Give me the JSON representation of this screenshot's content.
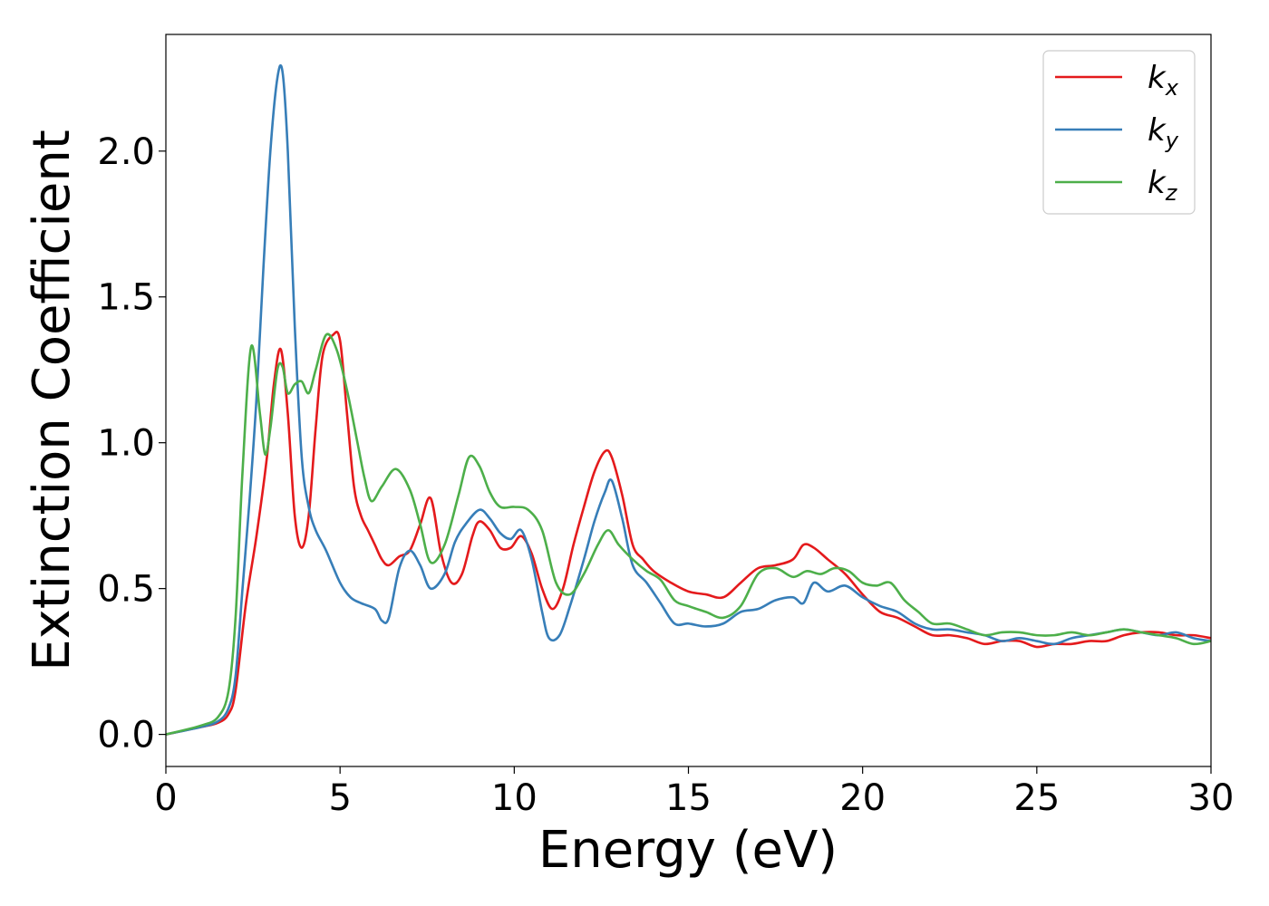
{
  "chart_data": {
    "type": "line",
    "xlabel": "Energy (eV)",
    "ylabel": "Extinction Coefficient",
    "xlim": [
      0,
      30
    ],
    "ylim": [
      -0.11,
      2.4
    ],
    "xticks": [
      0,
      5,
      10,
      15,
      20,
      25,
      30
    ],
    "xtick_labels": [
      "0",
      "5",
      "10",
      "15",
      "20",
      "25",
      "30"
    ],
    "yticks": [
      0.0,
      0.5,
      1.0,
      1.5,
      2.0
    ],
    "ytick_labels": [
      "0.0",
      "0.5",
      "1.0",
      "1.5",
      "2.0"
    ],
    "grid": false,
    "legend_position": "top-right",
    "series": [
      {
        "name": "k_x",
        "label_base": "k",
        "label_sub": "x",
        "color": "#e41a1c",
        "x": [
          0,
          1.0,
          1.5,
          1.8,
          2.0,
          2.3,
          2.6,
          2.9,
          3.1,
          3.3,
          3.5,
          3.7,
          3.9,
          4.1,
          4.3,
          4.5,
          4.8,
          5.0,
          5.2,
          5.4,
          5.6,
          5.8,
          6.0,
          6.2,
          6.4,
          6.7,
          7.0,
          7.3,
          7.6,
          7.9,
          8.2,
          8.5,
          8.8,
          9.0,
          9.3,
          9.6,
          9.9,
          10.2,
          10.5,
          10.8,
          11.1,
          11.4,
          11.7,
          12.0,
          12.3,
          12.6,
          12.8,
          13.1,
          13.4,
          13.7,
          14.0,
          14.5,
          15.0,
          15.5,
          16.0,
          16.5,
          17.0,
          17.5,
          18.0,
          18.3,
          18.6,
          19.0,
          19.5,
          20.0,
          20.5,
          21.0,
          21.5,
          22.0,
          22.5,
          23.0,
          23.5,
          24.0,
          24.5,
          25.0,
          25.5,
          26.0,
          26.5,
          27.0,
          27.5,
          28.0,
          28.5,
          29.0,
          29.5,
          30.0
        ],
        "y": [
          0.0,
          0.025,
          0.04,
          0.07,
          0.15,
          0.45,
          0.68,
          0.95,
          1.2,
          1.32,
          1.1,
          0.75,
          0.64,
          0.75,
          1.05,
          1.3,
          1.37,
          1.35,
          1.1,
          0.85,
          0.75,
          0.7,
          0.65,
          0.6,
          0.58,
          0.61,
          0.63,
          0.72,
          0.81,
          0.62,
          0.52,
          0.55,
          0.68,
          0.73,
          0.7,
          0.64,
          0.64,
          0.68,
          0.62,
          0.5,
          0.43,
          0.5,
          0.65,
          0.78,
          0.9,
          0.97,
          0.95,
          0.82,
          0.65,
          0.6,
          0.56,
          0.52,
          0.49,
          0.48,
          0.47,
          0.52,
          0.57,
          0.58,
          0.6,
          0.65,
          0.64,
          0.6,
          0.55,
          0.48,
          0.42,
          0.4,
          0.37,
          0.34,
          0.34,
          0.33,
          0.31,
          0.32,
          0.32,
          0.3,
          0.31,
          0.31,
          0.32,
          0.32,
          0.34,
          0.35,
          0.35,
          0.34,
          0.34,
          0.33
        ]
      },
      {
        "name": "k_y",
        "label_base": "k",
        "label_sub": "y",
        "color": "#377eb8",
        "x": [
          0,
          1.0,
          1.5,
          1.8,
          2.0,
          2.2,
          2.4,
          2.6,
          2.8,
          3.0,
          3.2,
          3.35,
          3.5,
          3.7,
          3.9,
          4.1,
          4.3,
          4.6,
          5.0,
          5.3,
          5.6,
          6.0,
          6.2,
          6.4,
          6.7,
          7.0,
          7.3,
          7.6,
          8.0,
          8.3,
          8.6,
          9.0,
          9.3,
          9.6,
          9.9,
          10.2,
          10.5,
          10.8,
          11.0,
          11.3,
          11.6,
          12.0,
          12.3,
          12.6,
          12.8,
          13.1,
          13.4,
          13.8,
          14.2,
          14.6,
          15.0,
          15.5,
          16.0,
          16.5,
          17.0,
          17.5,
          18.0,
          18.3,
          18.6,
          19.0,
          19.5,
          20.0,
          20.5,
          21.0,
          21.5,
          22.0,
          22.5,
          23.0,
          23.5,
          24.0,
          24.5,
          25.0,
          25.5,
          26.0,
          26.5,
          27.0,
          27.5,
          28.0,
          28.5,
          29.0,
          29.5,
          30.0
        ],
        "y": [
          0.0,
          0.025,
          0.045,
          0.09,
          0.2,
          0.5,
          0.8,
          1.15,
          1.6,
          2.0,
          2.25,
          2.27,
          2.0,
          1.4,
          0.95,
          0.78,
          0.7,
          0.63,
          0.52,
          0.47,
          0.45,
          0.43,
          0.39,
          0.4,
          0.57,
          0.63,
          0.58,
          0.5,
          0.55,
          0.66,
          0.72,
          0.77,
          0.74,
          0.69,
          0.67,
          0.7,
          0.6,
          0.42,
          0.33,
          0.34,
          0.44,
          0.6,
          0.73,
          0.83,
          0.87,
          0.74,
          0.58,
          0.52,
          0.45,
          0.38,
          0.38,
          0.37,
          0.38,
          0.42,
          0.43,
          0.46,
          0.47,
          0.45,
          0.52,
          0.49,
          0.51,
          0.47,
          0.44,
          0.42,
          0.38,
          0.36,
          0.36,
          0.35,
          0.34,
          0.32,
          0.33,
          0.32,
          0.31,
          0.33,
          0.34,
          0.35,
          0.36,
          0.35,
          0.34,
          0.35,
          0.33,
          0.32
        ]
      },
      {
        "name": "k_z",
        "label_base": "k",
        "label_sub": "z",
        "color": "#4daf4a",
        "x": [
          0,
          1.0,
          1.5,
          1.8,
          2.0,
          2.2,
          2.45,
          2.7,
          2.85,
          3.0,
          3.2,
          3.35,
          3.5,
          3.7,
          3.9,
          4.1,
          4.3,
          4.6,
          4.9,
          5.2,
          5.5,
          5.7,
          5.9,
          6.2,
          6.6,
          7.0,
          7.3,
          7.6,
          8.0,
          8.4,
          8.7,
          9.0,
          9.3,
          9.6,
          10.0,
          10.4,
          10.8,
          11.2,
          11.6,
          12.0,
          12.4,
          12.7,
          13.0,
          13.4,
          13.8,
          14.2,
          14.6,
          15.0,
          15.5,
          16.0,
          16.5,
          17.0,
          17.5,
          18.0,
          18.4,
          18.8,
          19.2,
          19.6,
          20.0,
          20.4,
          20.8,
          21.2,
          21.6,
          22.0,
          22.5,
          23.0,
          23.5,
          24.0,
          24.5,
          25.0,
          25.5,
          26.0,
          26.5,
          27.0,
          27.5,
          28.0,
          28.5,
          29.0,
          29.5,
          30.0
        ],
        "y": [
          0.0,
          0.03,
          0.06,
          0.15,
          0.4,
          0.9,
          1.33,
          1.1,
          0.96,
          1.05,
          1.25,
          1.26,
          1.17,
          1.2,
          1.21,
          1.17,
          1.25,
          1.37,
          1.32,
          1.18,
          1.0,
          0.88,
          0.8,
          0.85,
          0.91,
          0.84,
          0.72,
          0.59,
          0.65,
          0.82,
          0.95,
          0.92,
          0.83,
          0.78,
          0.78,
          0.77,
          0.7,
          0.52,
          0.48,
          0.55,
          0.65,
          0.7,
          0.65,
          0.6,
          0.56,
          0.53,
          0.46,
          0.44,
          0.42,
          0.4,
          0.44,
          0.55,
          0.57,
          0.54,
          0.56,
          0.55,
          0.57,
          0.56,
          0.52,
          0.51,
          0.52,
          0.46,
          0.42,
          0.38,
          0.38,
          0.36,
          0.34,
          0.35,
          0.35,
          0.34,
          0.34,
          0.35,
          0.34,
          0.35,
          0.36,
          0.35,
          0.34,
          0.33,
          0.31,
          0.32
        ]
      }
    ]
  }
}
